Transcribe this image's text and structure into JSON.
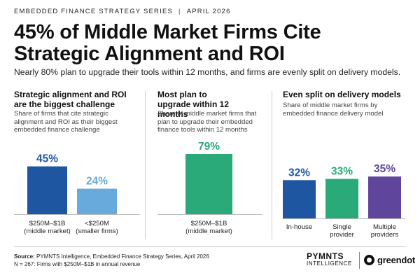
{
  "header": {
    "series": "EMBEDDED FINANCE STRATEGY SERIES",
    "separator": "|",
    "date": "APRIL 2026",
    "title": "45% of Middle Market Firms Cite Strategic Alignment and ROI",
    "subtitle": "Nearly 80% plan to upgrade their tools within 12 months, and firms are evenly split on delivery models."
  },
  "colors": {
    "dark_blue": "#1f56a2",
    "light_blue": "#68aadb",
    "green": "#2aaa78",
    "purple": "#5f469c"
  },
  "chart_data": [
    {
      "type": "bar",
      "title": "Strategic alignment and ROI are the biggest challenge",
      "subtitle": "Share of firms that cite strategic alignment and ROI as their biggest embedded finance challenge",
      "categories": [
        [
          "$250M–$1B",
          "(middle market)"
        ],
        [
          "<$250M",
          "(smaller firms)"
        ]
      ],
      "values": [
        45,
        24
      ],
      "labels": [
        "45%",
        "24%"
      ],
      "colors": [
        "#1f56a2",
        "#68aadb"
      ],
      "ylim": [
        0,
        79
      ],
      "unit": "%"
    },
    {
      "type": "bar",
      "title": "Most plan to upgrade within 12 months",
      "subtitle": "Share of middle market firms that plan to upgrade their embedded finance tools within 12 months",
      "categories": [
        [
          "$250M–$1B",
          "(middle market)"
        ]
      ],
      "values": [
        79
      ],
      "labels": [
        "79%"
      ],
      "colors": [
        "#2aaa78"
      ],
      "ylim": [
        0,
        79
      ],
      "unit": "%"
    },
    {
      "type": "bar",
      "title": "Even split on delivery models",
      "subtitle": "Share of middle market firms by embedded finance delivery model",
      "categories": [
        [
          "In-house"
        ],
        [
          "Single",
          "provider"
        ],
        [
          "Multiple",
          "providers"
        ]
      ],
      "values": [
        32,
        33,
        35
      ],
      "labels": [
        "32%",
        "33%",
        "35%"
      ],
      "colors": [
        "#1f56a2",
        "#2aaa78",
        "#5f469c"
      ],
      "ylim": [
        0,
        79
      ],
      "unit": "%"
    }
  ],
  "footer": {
    "source_label": "Source:",
    "source_text": " PYMNTS Intelligence, Embedded Finance Strategy Series, April 2026",
    "note": "N = 267: Firms with $250M–$1B in annual revenue",
    "logo_pymnts_1": "PYMNTS",
    "logo_pymnts_2": "INTELLIGENCE",
    "logo_greendot": "greendot"
  }
}
